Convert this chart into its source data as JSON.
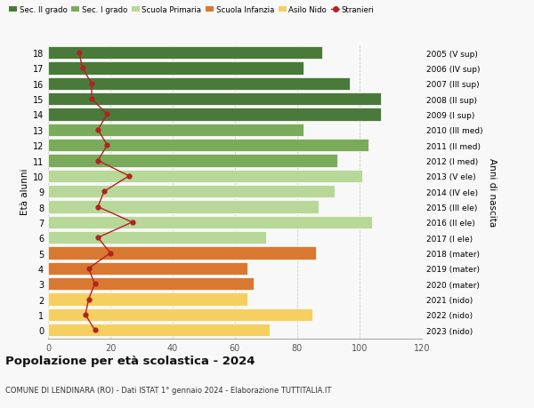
{
  "ages": [
    18,
    17,
    16,
    15,
    14,
    13,
    12,
    11,
    10,
    9,
    8,
    7,
    6,
    5,
    4,
    3,
    2,
    1,
    0
  ],
  "years": [
    "2005 (V sup)",
    "2006 (IV sup)",
    "2007 (III sup)",
    "2008 (II sup)",
    "2009 (I sup)",
    "2010 (III med)",
    "2011 (II med)",
    "2012 (I med)",
    "2013 (V ele)",
    "2014 (IV ele)",
    "2015 (III ele)",
    "2016 (II ele)",
    "2017 (I ele)",
    "2018 (mater)",
    "2019 (mater)",
    "2020 (mater)",
    "2021 (nido)",
    "2022 (nido)",
    "2023 (nido)"
  ],
  "bar_values": [
    88,
    82,
    97,
    107,
    107,
    82,
    103,
    93,
    101,
    92,
    87,
    104,
    70,
    86,
    64,
    66,
    64,
    85,
    71
  ],
  "bar_colors": [
    "#4a7a3a",
    "#4a7a3a",
    "#4a7a3a",
    "#4a7a3a",
    "#4a7a3a",
    "#7aab5a",
    "#7aab5a",
    "#7aab5a",
    "#b8d898",
    "#b8d898",
    "#b8d898",
    "#b8d898",
    "#b8d898",
    "#d97830",
    "#d97830",
    "#d97830",
    "#f5d060",
    "#f5d060",
    "#f5d060"
  ],
  "stranieri_values": [
    10,
    11,
    14,
    14,
    19,
    16,
    19,
    16,
    26,
    18,
    16,
    27,
    16,
    20,
    13,
    15,
    13,
    12,
    15
  ],
  "stranieri_color": "#b22222",
  "xlim": [
    0,
    120
  ],
  "xticks": [
    0,
    20,
    40,
    60,
    80,
    100,
    120
  ],
  "ylabel_left": "Età alunni",
  "ylabel_right": "Anni di nascita",
  "title": "Popolazione per età scolastica - 2024",
  "subtitle": "COMUNE DI LENDINARA (RO) - Dati ISTAT 1° gennaio 2024 - Elaborazione TUTTITALIA.IT",
  "legend_entries": [
    "Sec. II grado",
    "Sec. I grado",
    "Scuola Primaria",
    "Scuola Infanzia",
    "Asilo Nido",
    "Stranieri"
  ],
  "legend_colors": [
    "#4a7a3a",
    "#7aab5a",
    "#b8d898",
    "#d97830",
    "#f5d060",
    "#b22222"
  ],
  "bg_color": "#f8f8f8",
  "grid_color": "#cccccc"
}
